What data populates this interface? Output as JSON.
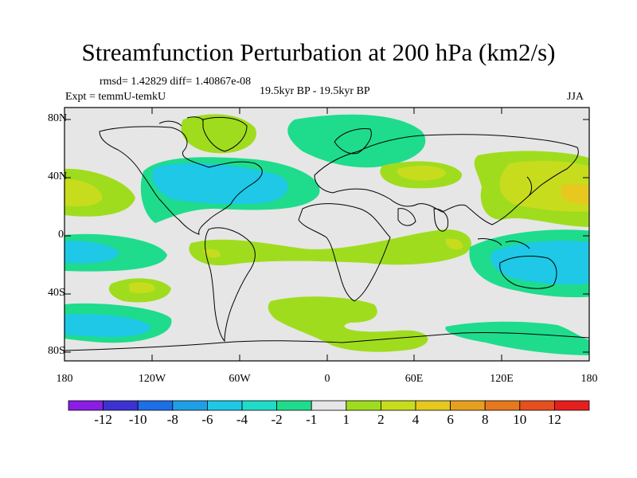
{
  "title": "Streamfunction Perturbation at 200 hPa (km2/s)",
  "stats": {
    "rmsd": "rmsd= 1.42829",
    "diff": "diff= 1.40867e-08"
  },
  "experiment": "Expt = temmU-temkU",
  "period": "19.5kyr BP - 19.5kyr BP",
  "season": "JJA",
  "axes": {
    "y_ticks": [
      "80N",
      "40N",
      "0",
      "40S",
      "80S"
    ],
    "x_ticks": [
      "180",
      "120W",
      "60W",
      "0",
      "60E",
      "120E",
      "180"
    ]
  },
  "colorbar": {
    "labels": [
      "-12",
      "-10",
      "-8",
      "-6",
      "-4",
      "-2",
      "-1",
      "1",
      "2",
      "4",
      "6",
      "8",
      "10",
      "12"
    ],
    "colors": [
      "#8a1ee6",
      "#3c32d2",
      "#1e6ee6",
      "#1ea0e6",
      "#1ec8e6",
      "#1edcc8",
      "#1edc8c",
      "#e6e6e6",
      "#a0dc1e",
      "#c8dc1e",
      "#e6c81e",
      "#e6a01e",
      "#e6781e",
      "#e6501e",
      "#e61e1e"
    ]
  },
  "colors": {
    "neutral": "#e6e6e6",
    "teal": "#1edc8c",
    "green_light": "#a0dc1e",
    "yellow_green": "#c8dc1e",
    "yellow": "#e6c81e",
    "cyan": "#1ec8e6",
    "cyan_deep": "#1ea0e6",
    "sea_green": "#1edcc8"
  }
}
